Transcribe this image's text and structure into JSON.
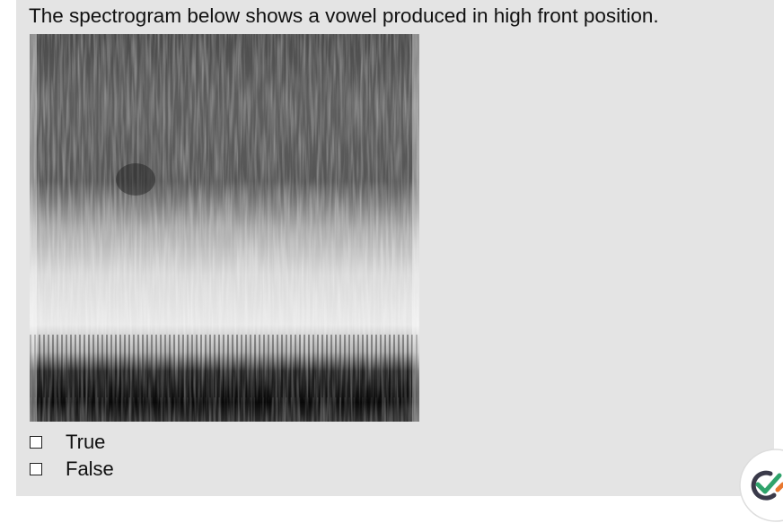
{
  "question": {
    "text": "The spectrogram below shows a vowel produced in high front position."
  },
  "options": [
    {
      "label": "True"
    },
    {
      "label": "False"
    }
  ]
}
